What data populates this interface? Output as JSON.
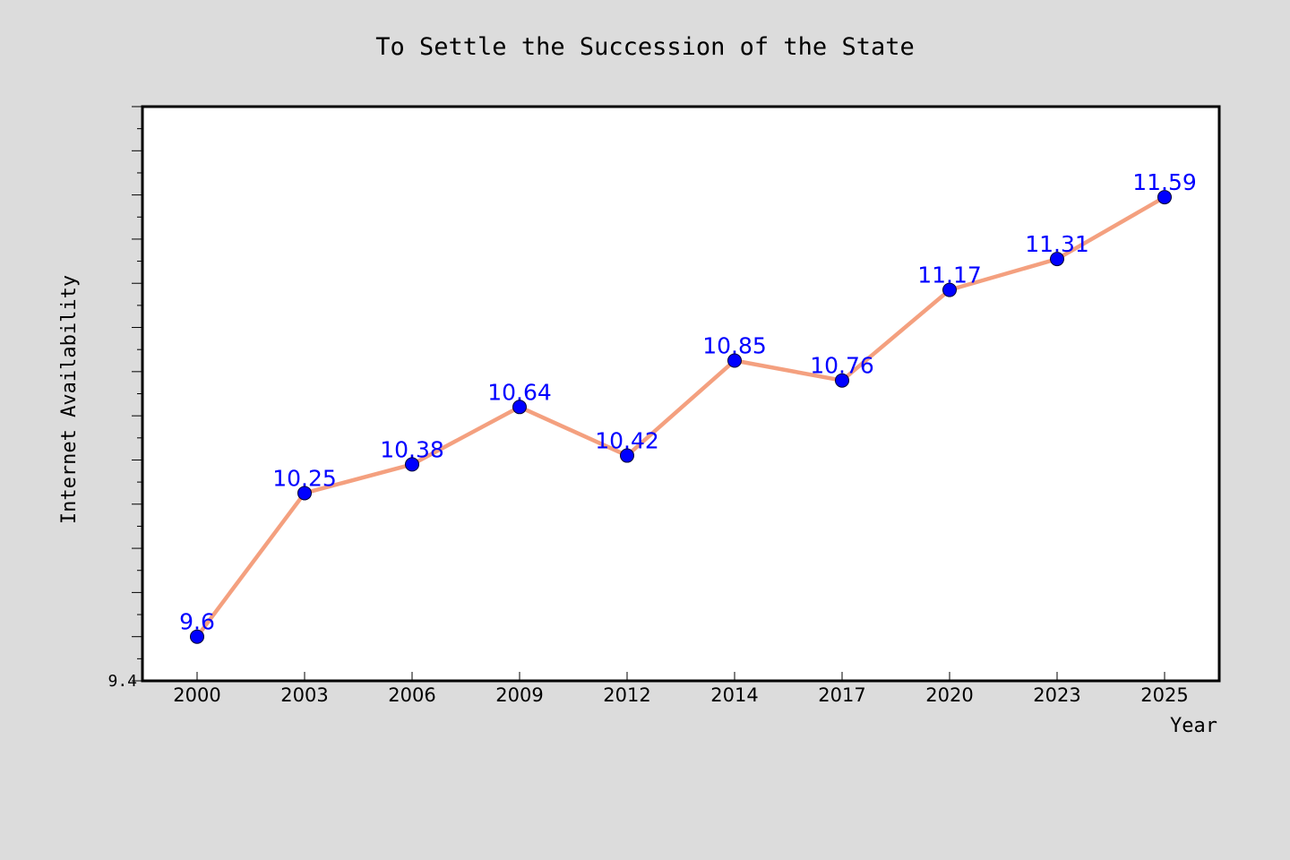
{
  "colors": {
    "background": "#dcdcdc",
    "plot_background": "#ffffff",
    "line": "#f4a07f",
    "marker": "#0000ff",
    "data_label": "#0000ff"
  },
  "chart_data": {
    "type": "line",
    "title": "To Settle the Succession of the State",
    "xlabel": "Year",
    "ylabel": "Internet Availability",
    "categories": [
      "2000",
      "2003",
      "2006",
      "2009",
      "2012",
      "2014",
      "2017",
      "2020",
      "2023",
      "2025"
    ],
    "series": [
      {
        "values": [
          9.6,
          10.25,
          10.38,
          10.64,
          10.42,
          10.85,
          10.76,
          11.17,
          11.31,
          11.59
        ],
        "labels": [
          "9.6",
          "10.25",
          "10.38",
          "10.64",
          "10.42",
          "10.85",
          "10.76",
          "11.17",
          "11.31",
          "11.59"
        ]
      }
    ],
    "ylim": [
      9.4,
      12.0
    ],
    "y_tick_labels": [
      "9.4"
    ],
    "grid": false,
    "legend": "none"
  }
}
